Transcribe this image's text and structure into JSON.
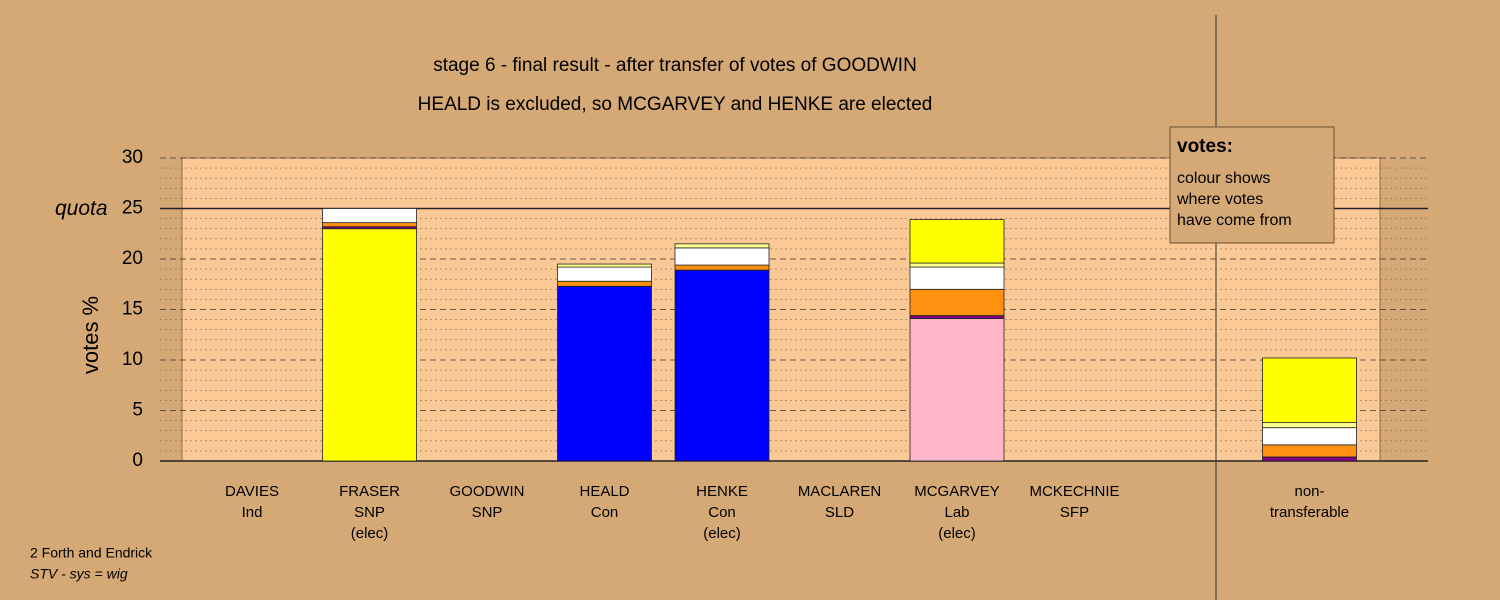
{
  "chart_data": {
    "type": "stacked-bar",
    "title": "stage 6 - final result - after transfer of votes of GOODWIN",
    "subtitle": "HEALD is excluded, so MCGARVEY and HENKE are elected",
    "y_label": "votes %",
    "quota": {
      "value": 25,
      "label": "quota"
    },
    "note": {
      "title": "votes:",
      "lines": [
        "colour shows",
        "where votes",
        "have come from"
      ]
    },
    "footer": [
      "2 Forth and Endrick",
      "STV - sys = wig"
    ],
    "categories": [
      [
        "DAVIES",
        "Ind"
      ],
      [
        "FRASER",
        "SNP",
        "(elec)"
      ],
      [
        "GOODWIN",
        "SNP"
      ],
      [
        "HEALD",
        "Con"
      ],
      [
        "HENKE",
        "Con",
        "(elec)"
      ],
      [
        "MACLAREN",
        "SLD"
      ],
      [
        "MCGARVEY",
        "Lab",
        "(elec)"
      ],
      [
        "MCKECHNIE",
        "SFP"
      ],
      null,
      [
        "non-",
        "transferable"
      ]
    ],
    "series": [
      {
        "color": "#ffff00",
        "values": [
          0,
          23.0,
          0,
          0,
          0,
          0,
          0,
          0,
          null,
          0
        ]
      },
      {
        "color": "#0000ff",
        "values": [
          0,
          0,
          0,
          17.3,
          18.9,
          0,
          0,
          0,
          null,
          0
        ]
      },
      {
        "color": "#ffb6c8",
        "values": [
          0,
          0,
          0,
          0,
          0,
          0,
          14.1,
          0,
          null,
          0
        ]
      },
      {
        "color": "#800080",
        "values": [
          0,
          0.2,
          0,
          0,
          0,
          0,
          0.3,
          0,
          null,
          0.4
        ]
      },
      {
        "color": "#ff9010",
        "values": [
          0,
          0.4,
          0,
          0.5,
          0.5,
          0,
          2.6,
          0,
          null,
          1.2
        ]
      },
      {
        "color": "#ffffff",
        "values": [
          0,
          1.4,
          0,
          1.4,
          1.7,
          0,
          2.2,
          0,
          null,
          1.7
        ]
      },
      {
        "color": "#ffff90",
        "values": [
          0,
          0,
          0,
          0.3,
          0.4,
          0,
          0.4,
          0,
          null,
          0.5
        ]
      },
      {
        "color": "#ffff00",
        "values": [
          0,
          0,
          0,
          0,
          0,
          0,
          4.3,
          0,
          null,
          6.4
        ]
      }
    ],
    "ylim": [
      0,
      30
    ],
    "yticks": [
      0,
      5,
      10,
      15,
      20,
      25,
      30
    ],
    "grid": true
  }
}
